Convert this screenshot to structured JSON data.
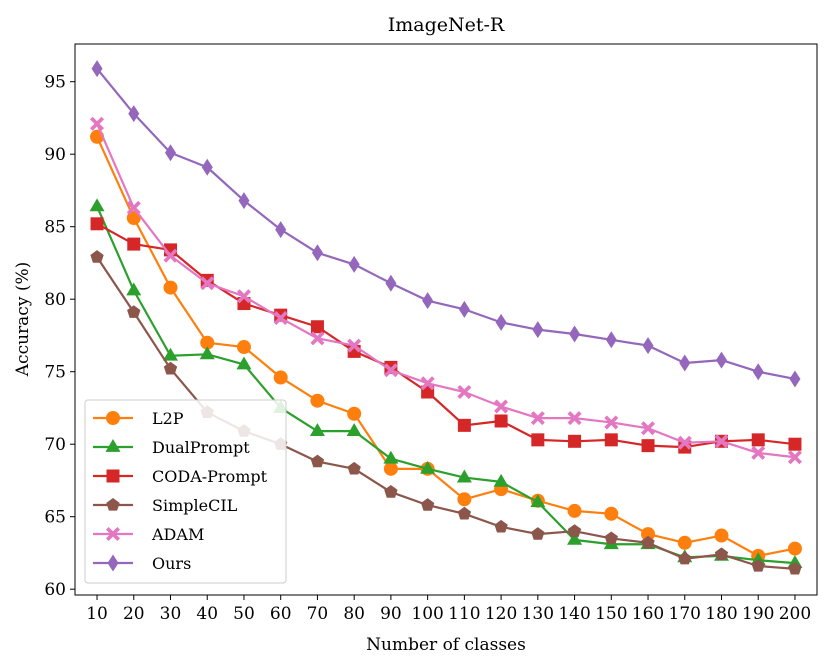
{
  "chart_data": {
    "type": "line",
    "title": "ImageNet-R",
    "xlabel": "Number of classes",
    "ylabel": "Accuracy (%)",
    "x": [
      10,
      20,
      30,
      40,
      50,
      60,
      70,
      80,
      90,
      100,
      110,
      120,
      130,
      140,
      150,
      160,
      170,
      180,
      190,
      200
    ],
    "xlim": [
      4,
      206
    ],
    "ylim": [
      59.6,
      97.6
    ],
    "yticks": [
      60,
      65,
      70,
      75,
      80,
      85,
      90,
      95
    ],
    "grid": false,
    "legend_position": "lower-left",
    "series": [
      {
        "name": "L2P",
        "color": "#ff7f0e",
        "marker": "circle",
        "values": [
          91.2,
          85.6,
          80.8,
          77.0,
          76.7,
          74.6,
          73.0,
          72.1,
          68.3,
          68.3,
          66.2,
          66.9,
          66.1,
          65.4,
          65.2,
          63.8,
          63.2,
          63.7,
          62.3,
          62.8
        ]
      },
      {
        "name": "DualPrompt",
        "color": "#2ca02c",
        "marker": "triangle",
        "values": [
          86.4,
          80.6,
          76.1,
          76.2,
          75.5,
          72.5,
          70.9,
          70.9,
          69.0,
          68.3,
          67.7,
          67.4,
          66.0,
          63.4,
          63.1,
          63.1,
          62.2,
          62.3,
          62.0,
          61.8
        ]
      },
      {
        "name": "CODA-Prompt",
        "color": "#d62728",
        "marker": "square",
        "values": [
          85.2,
          83.8,
          83.4,
          81.3,
          79.7,
          78.9,
          78.1,
          76.4,
          75.3,
          73.6,
          71.3,
          71.6,
          70.3,
          70.2,
          70.3,
          69.9,
          69.8,
          70.2,
          70.3,
          70.0
        ]
      },
      {
        "name": "SimpleCIL",
        "color": "#8c564b",
        "marker": "pentagon",
        "values": [
          82.9,
          79.1,
          75.2,
          72.2,
          70.9,
          70.0,
          68.8,
          68.3,
          66.7,
          65.8,
          65.2,
          64.3,
          63.8,
          64.0,
          63.5,
          63.2,
          62.1,
          62.4,
          61.6,
          61.4
        ]
      },
      {
        "name": "ADAM",
        "color": "#e377c2",
        "marker": "x",
        "values": [
          92.1,
          86.3,
          83.0,
          81.1,
          80.2,
          78.7,
          77.3,
          76.8,
          75.1,
          74.2,
          73.6,
          72.6,
          71.8,
          71.8,
          71.5,
          71.1,
          70.1,
          70.2,
          69.4,
          69.1
        ]
      },
      {
        "name": "Ours",
        "color": "#9467bd",
        "marker": "diamond",
        "values": [
          95.9,
          92.8,
          90.1,
          89.1,
          86.8,
          84.8,
          83.2,
          82.4,
          81.1,
          79.9,
          79.3,
          78.4,
          77.9,
          77.6,
          77.2,
          76.8,
          75.6,
          75.8,
          75.0,
          74.5
        ]
      }
    ]
  }
}
